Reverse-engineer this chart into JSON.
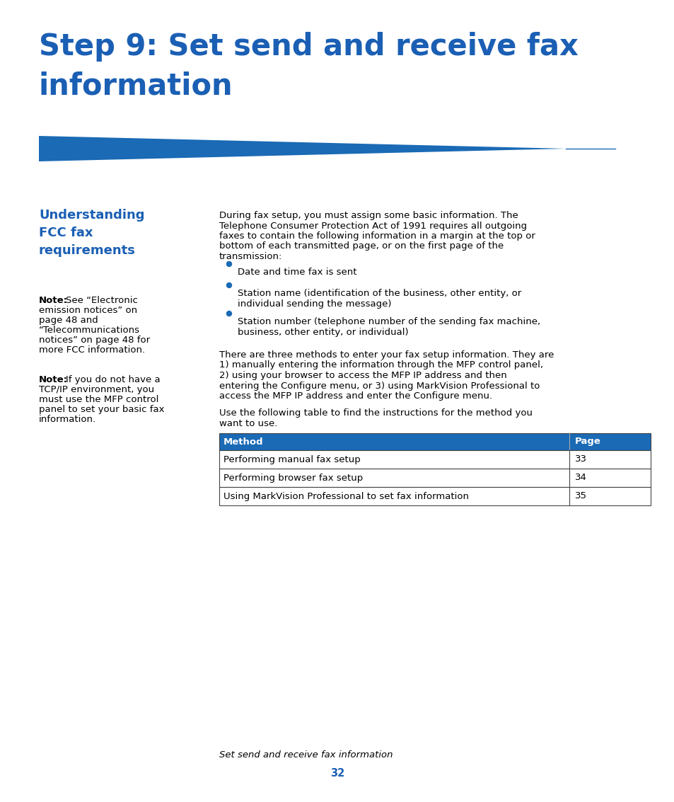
{
  "bg_color": "#ffffff",
  "title_line1": "Step 9: Set send and receive fax",
  "title_line2": "information",
  "title_color": "#1a5fb4",
  "title_fontsize": 30,
  "triangle_color": "#1a6ab5",
  "section_heading_color": "#1a5fb4",
  "section_heading_fontsize": 13,
  "note_fontsize": 9.5,
  "body_fontsize": 9.5,
  "table_header_bg": "#1a6ab5",
  "table_header_color": "#ffffff",
  "table_header_fontsize": 9.5,
  "table_border_color": "#444444",
  "table_methods": [
    "Performing manual fax setup",
    "Performing browser fax setup",
    "Using MarkVision Professional to set fax information"
  ],
  "table_pages": [
    "33",
    "34",
    "35"
  ],
  "table_fontsize": 9.5,
  "footer_page": "32",
  "footer_color": "#1a5fb4",
  "footer_fontsize": 9.5
}
